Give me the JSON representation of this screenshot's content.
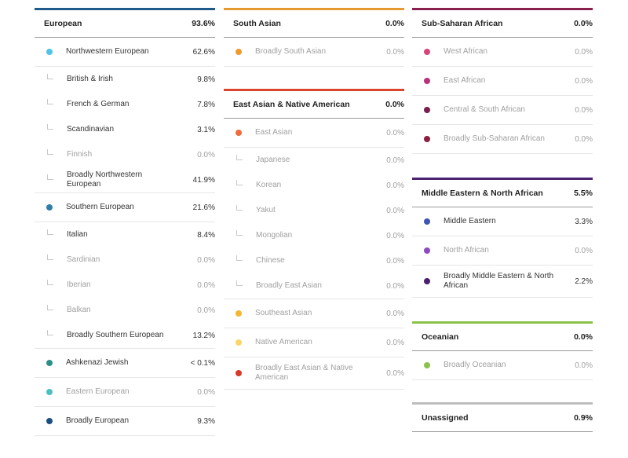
{
  "columns": [
    [
      {
        "title": "European",
        "percent": "93.6%",
        "color": "#1f5a8a",
        "rows": [
          {
            "label": "Northwestern European",
            "value": "62.6%",
            "type": "main",
            "dot": "#4fc3e8"
          },
          {
            "label": "British & Irish",
            "value": "9.8%",
            "type": "sub"
          },
          {
            "label": "French & German",
            "value": "7.8%",
            "type": "sub"
          },
          {
            "label": "Scandinavian",
            "value": "3.1%",
            "type": "sub"
          },
          {
            "label": "Finnish",
            "value": "0.0%",
            "type": "sub",
            "zero": true
          },
          {
            "label": "Broadly Northwestern European",
            "value": "41.9%",
            "type": "sub",
            "last": true
          },
          {
            "label": "Southern European",
            "value": "21.6%",
            "type": "main",
            "dot": "#2e7fa6"
          },
          {
            "label": "Italian",
            "value": "8.4%",
            "type": "sub"
          },
          {
            "label": "Sardinian",
            "value": "0.0%",
            "type": "sub",
            "zero": true
          },
          {
            "label": "Iberian",
            "value": "0.0%",
            "type": "sub",
            "zero": true
          },
          {
            "label": "Balkan",
            "value": "0.0%",
            "type": "sub",
            "zero": true
          },
          {
            "label": "Broadly Southern European",
            "value": "13.2%",
            "type": "sub",
            "last": true
          },
          {
            "label": "Ashkenazi Jewish",
            "value": "< 0.1%",
            "type": "main",
            "dot": "#2b8f8a"
          },
          {
            "label": "Eastern European",
            "value": "0.0%",
            "type": "main",
            "dot": "#49bfc0",
            "zero": true
          },
          {
            "label": "Broadly European",
            "value": "9.3%",
            "type": "main",
            "dot": "#1a4f86"
          }
        ]
      }
    ],
    [
      {
        "title": "South Asian",
        "percent": "0.0%",
        "color": "#e59a2f",
        "rows": [
          {
            "label": "Broadly South Asian",
            "value": "0.0%",
            "type": "main",
            "dot": "#ec9a2f",
            "zero": true
          }
        ]
      },
      {
        "title": "East Asian & Native American",
        "percent": "0.0%",
        "color": "#d9442c",
        "rows": [
          {
            "label": "East Asian",
            "value": "0.0%",
            "type": "main",
            "dot": "#ef6b3b",
            "zero": true
          },
          {
            "label": "Japanese",
            "value": "0.0%",
            "type": "sub",
            "zero": true
          },
          {
            "label": "Korean",
            "value": "0.0%",
            "type": "sub",
            "zero": true
          },
          {
            "label": "Yakut",
            "value": "0.0%",
            "type": "sub",
            "zero": true
          },
          {
            "label": "Mongolian",
            "value": "0.0%",
            "type": "sub",
            "zero": true
          },
          {
            "label": "Chinese",
            "value": "0.0%",
            "type": "sub",
            "zero": true
          },
          {
            "label": "Broadly East Asian",
            "value": "0.0%",
            "type": "sub",
            "zero": true,
            "last": true
          },
          {
            "label": "Southeast Asian",
            "value": "0.0%",
            "type": "main",
            "dot": "#f2b632",
            "zero": true
          },
          {
            "label": "Native American",
            "value": "0.0%",
            "type": "main",
            "dot": "#f8d66a",
            "zero": true
          },
          {
            "label": "Broadly East Asian & Native American",
            "value": "0.0%",
            "type": "main",
            "dot": "#d9382c",
            "zero": true,
            "tall": true
          }
        ]
      }
    ],
    [
      {
        "title": "Sub-Saharan African",
        "percent": "0.0%",
        "color": "#8a1f4e",
        "rows": [
          {
            "label": "West African",
            "value": "0.0%",
            "type": "main",
            "dot": "#d6457a",
            "zero": true
          },
          {
            "label": "East African",
            "value": "0.0%",
            "type": "main",
            "dot": "#b8327a",
            "zero": true
          },
          {
            "label": "Central & South African",
            "value": "0.0%",
            "type": "main",
            "dot": "#7a1f4e",
            "zero": true
          },
          {
            "label": "Broadly Sub-Saharan African",
            "value": "0.0%",
            "type": "main",
            "dot": "#8a1f3e",
            "zero": true
          }
        ]
      },
      {
        "title": "Middle Eastern & North African",
        "percent": "5.5%",
        "color": "#4b2270",
        "rows": [
          {
            "label": "Middle Eastern",
            "value": "3.3%",
            "type": "main",
            "dot": "#3f54b5"
          },
          {
            "label": "North African",
            "value": "0.0%",
            "type": "main",
            "dot": "#8a4cc0",
            "zero": true
          },
          {
            "label": "Broadly Middle Eastern & North African",
            "value": "2.2%",
            "type": "main",
            "dot": "#4a1f6e",
            "tall": true
          }
        ]
      },
      {
        "title": "Oceanian",
        "percent": "0.0%",
        "color": "#8bc34a",
        "rows": [
          {
            "label": "Broadly Oceanian",
            "value": "0.0%",
            "type": "main",
            "dot": "#8bc34a",
            "zero": true
          }
        ]
      },
      {
        "title": "Unassigned",
        "percent": "0.9%",
        "color": "#bdbdbd",
        "rows": []
      }
    ]
  ]
}
